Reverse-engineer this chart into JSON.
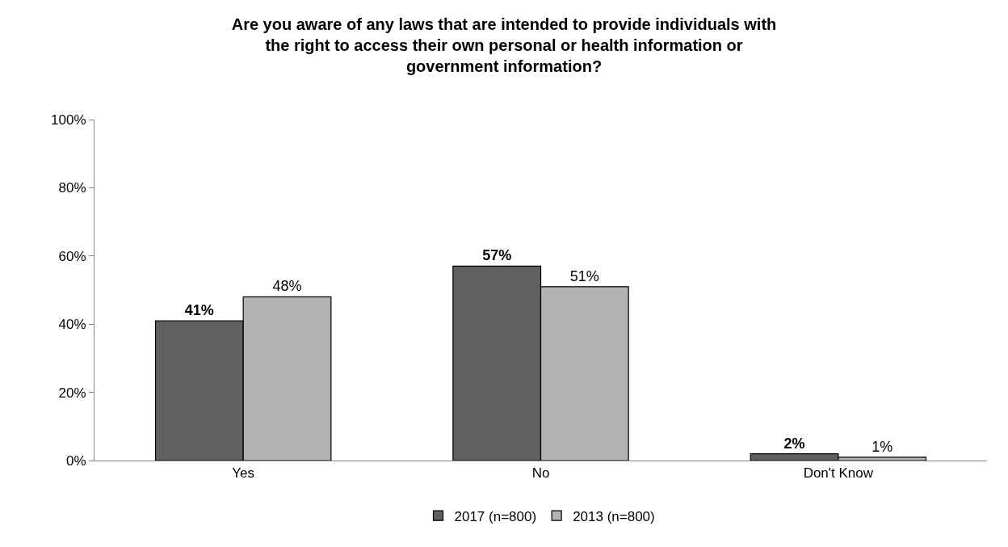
{
  "chart_data": {
    "type": "bar",
    "title": "Are you aware of any laws that are intended to provide individuals with the right to access their own personal or health information or government information?",
    "categories": [
      "Yes",
      "No",
      "Don't Know"
    ],
    "series": [
      {
        "name": "2017 (n=800)",
        "color": "#606060",
        "values": [
          41,
          57,
          2
        ],
        "value_labels": [
          "41%",
          "57%",
          "2%"
        ]
      },
      {
        "name": "2013 (n=800)",
        "color": "#b3b3b3",
        "values": [
          48,
          51,
          1
        ],
        "value_labels": [
          "48%",
          "51%",
          "1%"
        ]
      }
    ],
    "ylim": [
      0,
      100
    ],
    "yticks": [
      {
        "value": 0,
        "label": "0%"
      },
      {
        "value": 20,
        "label": "20%"
      },
      {
        "value": 40,
        "label": "40%"
      },
      {
        "value": 60,
        "label": "60%"
      },
      {
        "value": 80,
        "label": "80%"
      },
      {
        "value": 100,
        "label": "100%"
      }
    ],
    "legend": "bottom"
  }
}
